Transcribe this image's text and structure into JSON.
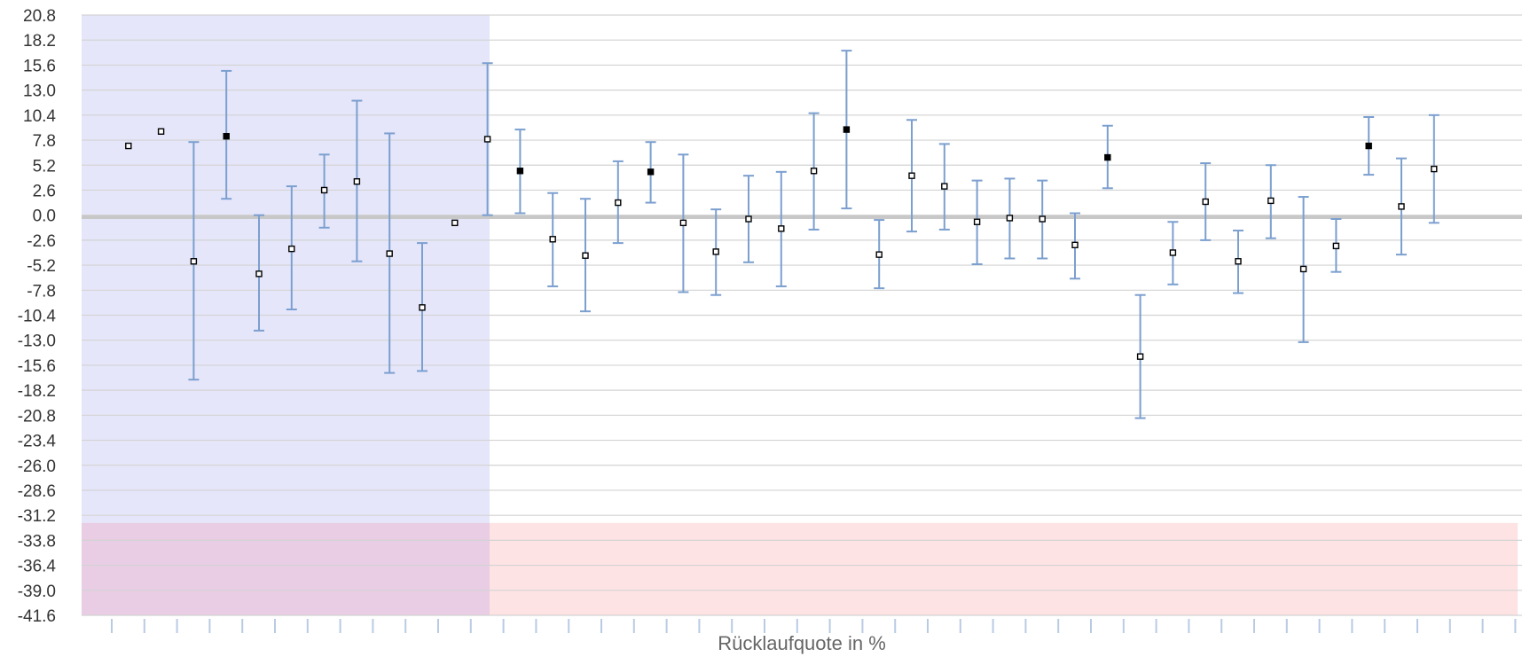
{
  "chart_data": {
    "type": "scatter",
    "title": "",
    "xlabel": "Rücklaufquote in %",
    "ylabel": "",
    "ylim": [
      -41.6,
      20.8
    ],
    "yticks": [
      "20.8",
      "18.2",
      "15.6",
      "13.0",
      "10.4",
      "7.8",
      "5.2",
      "2.6",
      "0.0",
      "-2.6",
      "-5.2",
      "-7.8",
      "-10.4",
      "-13.0",
      "-15.6",
      "-18.2",
      "-20.8",
      "-23.4",
      "-26.0",
      "-28.6",
      "-31.2",
      "-33.8",
      "-36.4",
      "-39.0",
      "-41.6"
    ],
    "ytick_values": [
      20.8,
      18.2,
      15.6,
      13.0,
      10.4,
      7.8,
      5.2,
      2.6,
      0.0,
      -2.6,
      -5.2,
      -7.8,
      -10.4,
      -13.0,
      -15.6,
      -18.2,
      -20.8,
      -23.4,
      -26.0,
      -28.6,
      -31.2,
      -33.8,
      -36.4,
      -39.0,
      -41.6
    ],
    "x_count": 44,
    "grid": true,
    "zero_band": [
      -0.4,
      0.0
    ],
    "bands": [
      {
        "name": "blue-region",
        "x_start": 0,
        "x_end": 12.5,
        "y_start": -41.6,
        "y_end": 20.8,
        "color": "#e6e6fb"
      },
      {
        "name": "red-region",
        "x_start": 0,
        "x_end": 44,
        "y_start": -41.6,
        "y_end": -32.0,
        "color": "#fde3e3"
      },
      {
        "name": "overlap-region",
        "x_start": 0,
        "x_end": 12.5,
        "y_start": -41.6,
        "y_end": -32.0,
        "color": "#e8cde4"
      }
    ],
    "colors": {
      "errorbar": "#7b9fcf",
      "grid": "#d3d3d3",
      "point_stroke": "#000000",
      "zero_band": "#c8c8c8"
    },
    "points": [
      {
        "x": 1,
        "y": 7.2,
        "lo": null,
        "hi": null,
        "filled": false
      },
      {
        "x": 2,
        "y": 8.7,
        "lo": null,
        "hi": null,
        "filled": false
      },
      {
        "x": 3,
        "y": -4.8,
        "lo": -17.1,
        "hi": 7.6,
        "filled": false
      },
      {
        "x": 4,
        "y": 8.2,
        "lo": 1.7,
        "hi": 15.0,
        "filled": true
      },
      {
        "x": 5,
        "y": -6.1,
        "lo": -12.0,
        "hi": 0.0,
        "filled": false
      },
      {
        "x": 6,
        "y": -3.5,
        "lo": -9.8,
        "hi": 3.0,
        "filled": false
      },
      {
        "x": 7,
        "y": 2.6,
        "lo": -1.3,
        "hi": 6.3,
        "filled": false
      },
      {
        "x": 8,
        "y": 3.5,
        "lo": -4.8,
        "hi": 11.9,
        "filled": false
      },
      {
        "x": 9,
        "y": -4.0,
        "lo": -16.4,
        "hi": 8.5,
        "filled": false
      },
      {
        "x": 10,
        "y": -9.6,
        "lo": -16.2,
        "hi": -2.9,
        "filled": false
      },
      {
        "x": 11,
        "y": -0.8,
        "lo": null,
        "hi": null,
        "filled": false
      },
      {
        "x": 12,
        "y": 7.9,
        "lo": 0.0,
        "hi": 15.8,
        "filled": false
      },
      {
        "x": 13,
        "y": 4.6,
        "lo": 0.2,
        "hi": 8.9,
        "filled": true
      },
      {
        "x": 14,
        "y": -2.5,
        "lo": -7.4,
        "hi": 2.3,
        "filled": false
      },
      {
        "x": 15,
        "y": -4.2,
        "lo": -10.0,
        "hi": 1.7,
        "filled": false
      },
      {
        "x": 16,
        "y": 1.3,
        "lo": -2.9,
        "hi": 5.6,
        "filled": false
      },
      {
        "x": 17,
        "y": 4.5,
        "lo": 1.3,
        "hi": 7.6,
        "filled": true
      },
      {
        "x": 18,
        "y": -0.8,
        "lo": -8.0,
        "hi": 6.3,
        "filled": false
      },
      {
        "x": 19,
        "y": -3.8,
        "lo": -8.3,
        "hi": 0.6,
        "filled": false
      },
      {
        "x": 20,
        "y": -0.4,
        "lo": -4.9,
        "hi": 4.1,
        "filled": false
      },
      {
        "x": 21,
        "y": -1.4,
        "lo": -7.4,
        "hi": 4.5,
        "filled": false
      },
      {
        "x": 22,
        "y": 4.6,
        "lo": -1.5,
        "hi": 10.6,
        "filled": false
      },
      {
        "x": 23,
        "y": 8.9,
        "lo": 0.7,
        "hi": 17.1,
        "filled": true
      },
      {
        "x": 24,
        "y": -4.1,
        "lo": -7.6,
        "hi": -0.5,
        "filled": false
      },
      {
        "x": 25,
        "y": 4.1,
        "lo": -1.7,
        "hi": 9.9,
        "filled": false
      },
      {
        "x": 26,
        "y": 3.0,
        "lo": -1.5,
        "hi": 7.4,
        "filled": false
      },
      {
        "x": 27,
        "y": -0.7,
        "lo": -5.1,
        "hi": 3.6,
        "filled": false
      },
      {
        "x": 28,
        "y": -0.3,
        "lo": -4.5,
        "hi": 3.8,
        "filled": false
      },
      {
        "x": 29,
        "y": -0.4,
        "lo": -4.5,
        "hi": 3.6,
        "filled": false
      },
      {
        "x": 30,
        "y": -3.1,
        "lo": -6.6,
        "hi": 0.2,
        "filled": false
      },
      {
        "x": 31,
        "y": 6.0,
        "lo": 2.8,
        "hi": 9.3,
        "filled": true
      },
      {
        "x": 32,
        "y": -14.7,
        "lo": -21.1,
        "hi": -8.3,
        "filled": false
      },
      {
        "x": 33,
        "y": -3.9,
        "lo": -7.2,
        "hi": -0.7,
        "filled": false
      },
      {
        "x": 34,
        "y": 1.4,
        "lo": -2.6,
        "hi": 5.4,
        "filled": false
      },
      {
        "x": 35,
        "y": -4.8,
        "lo": -8.1,
        "hi": -1.6,
        "filled": false
      },
      {
        "x": 36,
        "y": 1.5,
        "lo": -2.4,
        "hi": 5.2,
        "filled": false
      },
      {
        "x": 37,
        "y": -5.6,
        "lo": -13.2,
        "hi": 1.9,
        "filled": false
      },
      {
        "x": 38,
        "y": -3.2,
        "lo": -5.9,
        "hi": -0.4,
        "filled": false
      },
      {
        "x": 39,
        "y": 7.2,
        "lo": 4.2,
        "hi": 10.2,
        "filled": true
      },
      {
        "x": 40,
        "y": 0.9,
        "lo": -4.1,
        "hi": 5.9,
        "filled": false
      },
      {
        "x": 41,
        "y": 4.8,
        "lo": -0.8,
        "hi": 10.4,
        "filled": false
      }
    ]
  }
}
